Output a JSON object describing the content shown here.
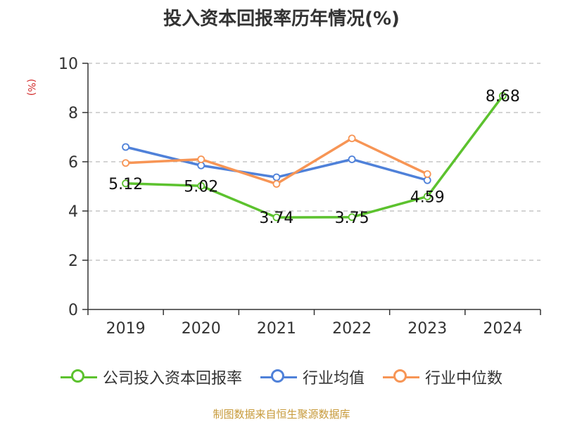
{
  "chart_data": {
    "type": "line",
    "title": "投入资本回报率历年情况(%)",
    "ylabel": "(%)",
    "categories": [
      "2019",
      "2020",
      "2021",
      "2022",
      "2023",
      "2024"
    ],
    "ylim": [
      0,
      10
    ],
    "yticks": [
      0,
      2,
      4,
      6,
      8,
      10
    ],
    "grid": "horizontal-dashed",
    "legend_position": "bottom",
    "series": [
      {
        "name": "公司投入资本回报率",
        "color": "#5cc22e",
        "values": [
          5.12,
          5.02,
          3.74,
          3.75,
          4.59,
          8.68
        ],
        "labels": [
          "5.12",
          "5.02",
          "3.74",
          "3.75",
          "4.59",
          "8.68"
        ]
      },
      {
        "name": "行业均值",
        "color": "#4f81d9",
        "values": [
          6.6,
          5.85,
          5.37,
          6.1,
          5.25,
          null
        ]
      },
      {
        "name": "行业中位数",
        "color": "#f79555",
        "values": [
          5.95,
          6.1,
          5.1,
          6.95,
          5.5,
          null
        ]
      }
    ]
  },
  "source": "制图数据来自恒生聚源数据库"
}
